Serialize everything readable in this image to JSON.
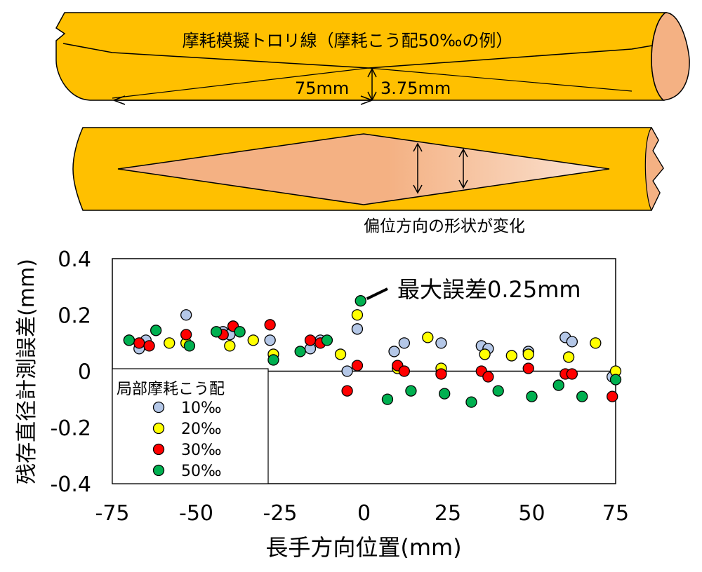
{
  "illustration": {
    "wire_title": "摩耗模擬トロリ線（摩耗こう配50‰の例）",
    "length_label": "75mm",
    "depth_label": "3.75mm",
    "shape_change_caption": "偏位方向の形状が変化",
    "colors": {
      "wire": "#FFC000",
      "worn_face": "#F4B183",
      "outline": "#000000"
    }
  },
  "chart_data": {
    "type": "scatter",
    "title": "",
    "xlabel": "長手方向位置(mm)",
    "ylabel": "残存直径計測誤差(mm)",
    "xlim": [
      -75,
      75
    ],
    "ylim": [
      -0.4,
      0.4
    ],
    "x_ticks": [
      "-75",
      "-50",
      "-25",
      "0",
      "25",
      "50",
      "75"
    ],
    "y_ticks": [
      "0.4",
      "0.2",
      "0",
      "-0.2",
      "-0.4"
    ],
    "x_tick_values": [
      -75,
      -50,
      -25,
      0,
      25,
      50,
      75
    ],
    "y_tick_values": [
      0.4,
      0.2,
      0,
      -0.2,
      -0.4
    ],
    "zero_line": true,
    "grid": false,
    "legend_title": "局部摩耗こう配",
    "legend_position": "bottom-left",
    "annotation": {
      "text": "最大誤差0.25mm",
      "x": -1,
      "y": 0.25
    },
    "series": [
      {
        "name": "10‰",
        "color": "#B4C7E7",
        "points": [
          [
            -70,
            0.11
          ],
          [
            -67,
            0.08
          ],
          [
            -65,
            0.11
          ],
          [
            -53,
            0.2
          ],
          [
            -42,
            0.14
          ],
          [
            -40,
            0.13
          ],
          [
            -28,
            0.11
          ],
          [
            -16,
            0.08
          ],
          [
            -13,
            0.11
          ],
          [
            -5,
            0
          ],
          [
            -2,
            0.15
          ],
          [
            9,
            0.07
          ],
          [
            12,
            0.1
          ],
          [
            23,
            0.1
          ],
          [
            35,
            0.09
          ],
          [
            37,
            0.08
          ],
          [
            49,
            0.07
          ],
          [
            60,
            0.12
          ],
          [
            62,
            0.105
          ],
          [
            74,
            -0.02
          ]
        ]
      },
      {
        "name": "20‰",
        "color": "#FFFF00",
        "points": [
          [
            -58,
            0.1
          ],
          [
            -53,
            0.1
          ],
          [
            -40,
            0.09
          ],
          [
            -33,
            0.11
          ],
          [
            -27,
            0.06
          ],
          [
            -7,
            0.06
          ],
          [
            -2,
            0.2
          ],
          [
            10,
            0.01
          ],
          [
            19,
            0.12
          ],
          [
            23,
            0.01
          ],
          [
            36,
            0.06
          ],
          [
            44,
            0.055
          ],
          [
            49,
            0.06
          ],
          [
            61,
            0.05
          ],
          [
            69,
            0.1
          ],
          [
            75,
            0
          ]
        ]
      },
      {
        "name": "30‰",
        "color": "#FF0000",
        "points": [
          [
            -67,
            0.1
          ],
          [
            -64,
            0.09
          ],
          [
            -53,
            0.13
          ],
          [
            -42,
            0.13
          ],
          [
            -39,
            0.16
          ],
          [
            -28,
            0.165
          ],
          [
            -16,
            0.11
          ],
          [
            -13,
            0.1
          ],
          [
            -5,
            -0.07
          ],
          [
            -2,
            0.02
          ],
          [
            10,
            0.02
          ],
          [
            12,
            0
          ],
          [
            23,
            -0.01
          ],
          [
            35,
            0
          ],
          [
            37,
            -0.02
          ],
          [
            49,
            0.01
          ],
          [
            60,
            -0.01
          ],
          [
            62,
            -0.01
          ],
          [
            74,
            -0.09
          ]
        ]
      },
      {
        "name": "50‰",
        "color": "#00B050",
        "points": [
          [
            -70,
            0.11
          ],
          [
            -62,
            0.145
          ],
          [
            -52,
            0.09
          ],
          [
            -44,
            0.14
          ],
          [
            -37,
            0.14
          ],
          [
            -27,
            0.04
          ],
          [
            -19,
            0.07
          ],
          [
            -11,
            0.11
          ],
          [
            -1,
            0.25
          ],
          [
            7,
            -0.1
          ],
          [
            14,
            -0.07
          ],
          [
            24,
            -0.08
          ],
          [
            32,
            -0.11
          ],
          [
            40,
            -0.07
          ],
          [
            50,
            -0.09
          ],
          [
            58,
            -0.05
          ],
          [
            65,
            -0.09
          ],
          [
            75,
            -0.03
          ]
        ]
      }
    ]
  }
}
